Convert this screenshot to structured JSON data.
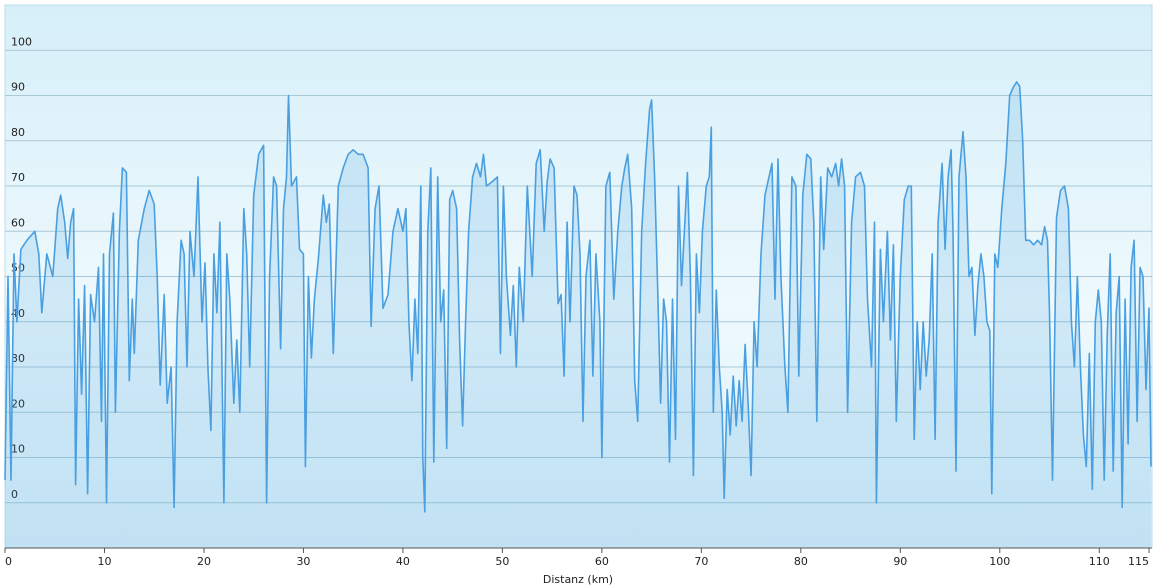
{
  "chart_data": {
    "type": "line",
    "xlabel": "Distanz  (km)",
    "xlim": [
      0,
      115.3
    ],
    "ylim": [
      -10,
      110
    ],
    "xticks": [
      0,
      10,
      20,
      30,
      40,
      50,
      60,
      70,
      80,
      90,
      100,
      110,
      115
    ],
    "yticks": [
      0,
      10,
      20,
      30,
      40,
      50,
      60,
      70,
      80,
      90,
      100
    ],
    "grid": true,
    "x": [
      0,
      0.3,
      0.6,
      0.9,
      1.2,
      1.6,
      2.2,
      3,
      3.4,
      3.7,
      4.2,
      4.8,
      5.3,
      5.6,
      6,
      6.3,
      6.6,
      6.9,
      7.1,
      7.4,
      7.7,
      8,
      8.3,
      8.6,
      9,
      9.4,
      9.7,
      9.9,
      10.2,
      10.5,
      10.9,
      11.1,
      11.5,
      11.8,
      12.2,
      12.5,
      12.8,
      13,
      13.4,
      14,
      14.5,
      15,
      15.3,
      15.6,
      16,
      16.3,
      16.7,
      17,
      17.3,
      17.7,
      18,
      18.3,
      18.6,
      19,
      19.4,
      19.8,
      20.1,
      20.4,
      20.7,
      21,
      21.3,
      21.6,
      22,
      22.3,
      22.6,
      23,
      23.3,
      23.6,
      24,
      24.3,
      24.6,
      25,
      25.5,
      26,
      26.3,
      26.6,
      27,
      27.3,
      27.7,
      28,
      28.3,
      28.5,
      28.8,
      29.3,
      29.6,
      30,
      30.2,
      30.5,
      30.8,
      31.1,
      31.5,
      32,
      32.3,
      32.6,
      33,
      33.5,
      34,
      34.5,
      35,
      35.5,
      36,
      36.5,
      36.8,
      37.2,
      37.6,
      38,
      38.5,
      39,
      39.5,
      40,
      40.3,
      40.6,
      40.9,
      41.2,
      41.5,
      41.8,
      42,
      42.2,
      42.5,
      42.8,
      43.1,
      43.5,
      43.8,
      44.1,
      44.4,
      44.7,
      45,
      45.4,
      45.7,
      46,
      46.3,
      46.6,
      47,
      47.4,
      47.8,
      48.1,
      48.4,
      49,
      49.5,
      49.8,
      50.1,
      50.4,
      50.8,
      51.1,
      51.4,
      51.7,
      52.1,
      52.5,
      53,
      53.4,
      53.8,
      54.2,
      54.5,
      54.8,
      55.2,
      55.6,
      55.9,
      56.2,
      56.5,
      56.8,
      57.2,
      57.5,
      57.8,
      58.1,
      58.4,
      58.8,
      59.1,
      59.4,
      59.8,
      60,
      60.4,
      60.8,
      61.2,
      61.6,
      62,
      62.3,
      62.6,
      63,
      63.3,
      63.6,
      64,
      64.4,
      64.8,
      65,
      65.3,
      65.6,
      65.9,
      66.2,
      66.5,
      66.8,
      67.1,
      67.4,
      67.7,
      68,
      68.3,
      68.6,
      68.9,
      69.2,
      69.5,
      69.8,
      70.1,
      70.5,
      70.8,
      71,
      71.2,
      71.5,
      71.8,
      72.1,
      72.3,
      72.6,
      72.9,
      73.2,
      73.5,
      73.8,
      74.1,
      74.4,
      74.7,
      75,
      75.3,
      75.6,
      76,
      76.4,
      76.8,
      77.1,
      77.4,
      77.7,
      78,
      78.4,
      78.7,
      79.1,
      79.5,
      79.8,
      80.2,
      80.6,
      81,
      81.3,
      81.6,
      82,
      82.3,
      82.7,
      83.1,
      83.5,
      83.8,
      84.1,
      84.4,
      84.7,
      85.1,
      85.5,
      86,
      86.4,
      86.7,
      87.1,
      87.4,
      87.6,
      88,
      88.3,
      88.7,
      89,
      89.3,
      89.6,
      90,
      90.4,
      90.8,
      91.1,
      91.4,
      91.7,
      92,
      92.3,
      92.6,
      92.9,
      93.2,
      93.5,
      93.8,
      94.2,
      94.5,
      94.8,
      95.1,
      95.3,
      95.6,
      95.9,
      96.3,
      96.6,
      96.9,
      97.2,
      97.5,
      97.8,
      98.1,
      98.4,
      98.7,
      99,
      99.2,
      99.5,
      99.8,
      100.2,
      100.6,
      101,
      101.4,
      101.7,
      102,
      102.3,
      102.6,
      103,
      103.4,
      103.8,
      104.2,
      104.5,
      104.8,
      105,
      105.3,
      105.7,
      106.1,
      106.5,
      106.9,
      107.2,
      107.5,
      107.8,
      108.1,
      108.4,
      108.7,
      109,
      109.3,
      109.6,
      109.9,
      110.2,
      110.5,
      110.8,
      111.1,
      111.4,
      111.7,
      112,
      112.3,
      112.6,
      112.9,
      113.2,
      113.5,
      113.8,
      114.1,
      114.4,
      114.7,
      115,
      115.2
    ],
    "series": [
      {
        "color": "#4a9fe0",
        "values": [
          5,
          50,
          5,
          55,
          40,
          56,
          58,
          60,
          55,
          42,
          55,
          50,
          65,
          68,
          62,
          54,
          62,
          65,
          4,
          45,
          24,
          48,
          2,
          46,
          40,
          52,
          18,
          55,
          0,
          55,
          64,
          20,
          60,
          74,
          73,
          27,
          45,
          33,
          58,
          65,
          69,
          66,
          50,
          26,
          46,
          22,
          30,
          -1,
          40,
          58,
          55,
          30,
          60,
          50,
          72,
          40,
          53,
          30,
          16,
          55,
          42,
          62,
          0,
          55,
          45,
          22,
          36,
          20,
          65,
          55,
          30,
          68,
          77,
          79,
          0,
          50,
          72,
          70,
          34,
          65,
          72,
          90,
          70,
          72,
          56,
          55,
          8,
          50,
          32,
          45,
          54,
          68,
          62,
          66,
          33,
          70,
          74,
          77,
          78,
          77,
          77,
          74,
          39,
          65,
          70,
          43,
          46,
          60,
          65,
          60,
          65,
          40,
          27,
          45,
          33,
          70,
          10,
          -2,
          60,
          74,
          9,
          72,
          40,
          47,
          12,
          67,
          69,
          65,
          36,
          17,
          40,
          60,
          72,
          75,
          72,
          77,
          70,
          71,
          72,
          33,
          70,
          50,
          37,
          48,
          30,
          52,
          40,
          70,
          50,
          75,
          78,
          60,
          71,
          76,
          74,
          44,
          46,
          28,
          62,
          40,
          70,
          68,
          55,
          18,
          50,
          58,
          28,
          55,
          40,
          10,
          70,
          73,
          45,
          60,
          70,
          74,
          77,
          65,
          27,
          18,
          60,
          75,
          87,
          89,
          72,
          48,
          22,
          45,
          40,
          9,
          45,
          14,
          70,
          48,
          60,
          73,
          50,
          6,
          55,
          42,
          60,
          70,
          72,
          83,
          20,
          47,
          30,
          20,
          1,
          25,
          15,
          28,
          17,
          27,
          18,
          35,
          22,
          6,
          40,
          30,
          55,
          68,
          72,
          75,
          45,
          76,
          50,
          30,
          20,
          72,
          70,
          28,
          68,
          77,
          76,
          62,
          18,
          72,
          56,
          74,
          72,
          75,
          70,
          76,
          70,
          20,
          62,
          72,
          73,
          70,
          45,
          30,
          62,
          0,
          56,
          40,
          60,
          36,
          57,
          18,
          50,
          67,
          70,
          70,
          14,
          40,
          25,
          40,
          28,
          36,
          55,
          14,
          62,
          75,
          56,
          72,
          78,
          60,
          7,
          72,
          82,
          72,
          50,
          52,
          37,
          48,
          55,
          50,
          40,
          38,
          2,
          55,
          52,
          65,
          75,
          90,
          92,
          93,
          92,
          80,
          58,
          58,
          57,
          58,
          57,
          61,
          58,
          42,
          5,
          63,
          69,
          70,
          65,
          40,
          30,
          50,
          30,
          15,
          8,
          33,
          3,
          40,
          47,
          40,
          5,
          37,
          55,
          7,
          42,
          50,
          -1,
          45,
          13,
          52,
          58,
          18,
          52,
          50,
          25,
          43,
          8
        ]
      }
    ]
  }
}
